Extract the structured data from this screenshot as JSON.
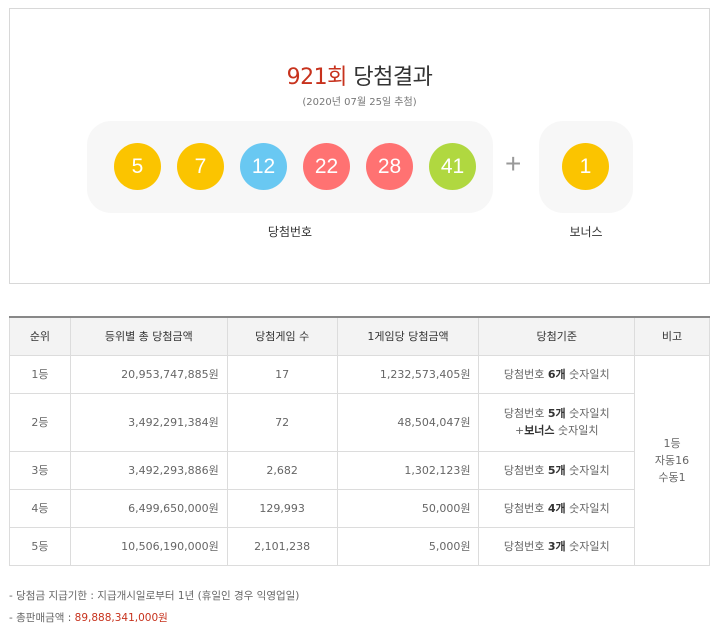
{
  "header": {
    "round": "921회",
    "title": "당첨결과",
    "date": "(2020년 07월 25일 추첨)"
  },
  "winning": {
    "balls": [
      {
        "num": "5",
        "color": "#fbc400"
      },
      {
        "num": "7",
        "color": "#fbc400"
      },
      {
        "num": "12",
        "color": "#69c8f2"
      },
      {
        "num": "22",
        "color": "#ff7272"
      },
      {
        "num": "28",
        "color": "#ff7272"
      },
      {
        "num": "41",
        "color": "#b0d840"
      }
    ],
    "label": "당첨번호",
    "plus": "+"
  },
  "bonus": {
    "num": "1",
    "color": "#fbc400",
    "label": "보너스"
  },
  "table": {
    "headers": [
      "순위",
      "등위별 총 당첨금액",
      "당첨게임 수",
      "1게임당 당첨금액",
      "당첨기준",
      "비고"
    ],
    "rows": [
      {
        "rank": "1등",
        "total": "20,953,747,885원",
        "count": "17",
        "per": "1,232,573,405원",
        "crit_pre": "당첨번호 ",
        "crit_bold": "6개",
        "crit_post": " 숫자일치"
      },
      {
        "rank": "2등",
        "total": "3,492,291,384원",
        "count": "72",
        "per": "48,504,047원",
        "crit_pre": "당첨번호 ",
        "crit_bold": "5개",
        "crit_post": " 숫자일치",
        "crit2_pre": "+",
        "crit2_bold": "보너스",
        "crit2_post": " 숫자일치"
      },
      {
        "rank": "3등",
        "total": "3,492,293,886원",
        "count": "2,682",
        "per": "1,302,123원",
        "crit_pre": "당첨번호 ",
        "crit_bold": "5개",
        "crit_post": " 숫자일치"
      },
      {
        "rank": "4등",
        "total": "6,499,650,000원",
        "count": "129,993",
        "per": "50,000원",
        "crit_pre": "당첨번호 ",
        "crit_bold": "4개",
        "crit_post": " 숫자일치"
      },
      {
        "rank": "5등",
        "total": "10,506,190,000원",
        "count": "2,101,238",
        "per": "5,000원",
        "crit_pre": "당첨번호 ",
        "crit_bold": "3개",
        "crit_post": " 숫자일치"
      }
    ],
    "note": [
      "1등",
      "자동16",
      "수동1"
    ]
  },
  "footer": {
    "deadline_label": "- 당첨금 지급기한 : 지급개시일로부터 1년 (휴일인 경우 익영업일)",
    "sales_label": "- 총판매금액 : ",
    "sales_value": "89,888,341,000원"
  }
}
